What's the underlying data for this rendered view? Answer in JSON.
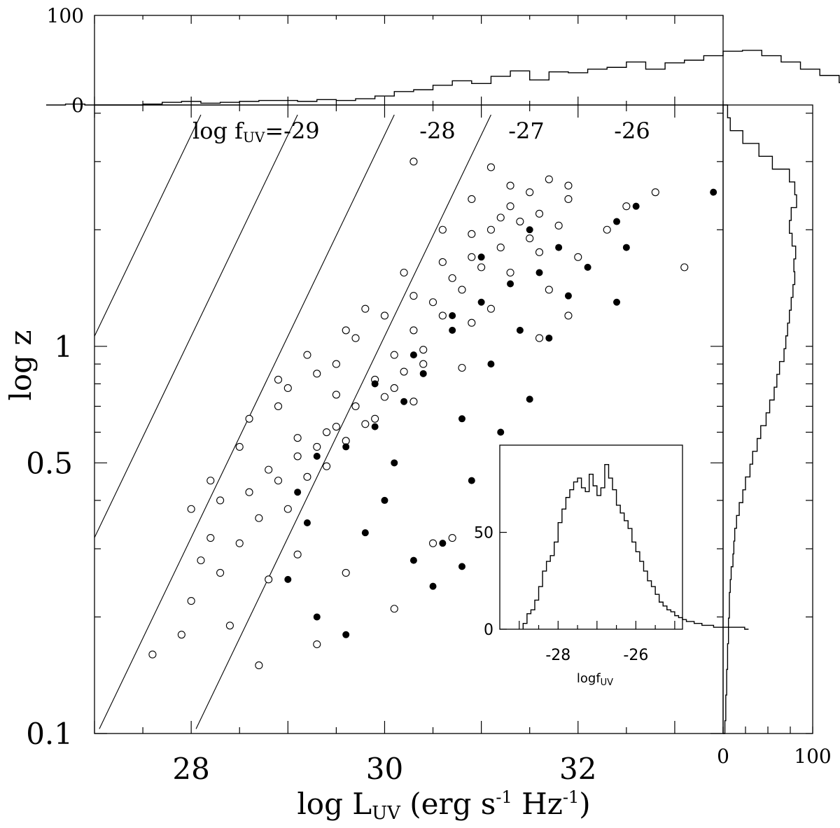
{
  "chart_data": {
    "main": {
      "type": "scatter",
      "xlabel": {
        "main": "log L",
        "sub": "UV",
        "rest": " (erg s",
        "sup1": "-1",
        "mid": " Hz",
        "sup2": "-1",
        "end": ")"
      },
      "ylabel": "log z",
      "xlim": [
        27,
        33.5
      ],
      "ylim": [
        0.1,
        4.2
      ],
      "yscale": "log",
      "x_tick_labels": [
        "28",
        "30",
        "32"
      ],
      "y_tick_labels": [
        "0.1",
        "0.5",
        "1"
      ],
      "flux_lines": {
        "label_prefix": "log f",
        "label_sub": "UV",
        "labels": [
          "=-29",
          "-28",
          "-27",
          "-26"
        ],
        "values": [
          -29,
          -28,
          -27,
          -26
        ]
      },
      "series": [
        {
          "marker": "open-circle",
          "points": [
            [
              28.7,
              0.15
            ],
            [
              27.9,
              0.18
            ],
            [
              28.0,
              0.22
            ],
            [
              28.3,
              0.26
            ],
            [
              28.5,
              0.31
            ],
            [
              28.7,
              0.36
            ],
            [
              28.9,
              0.45
            ],
            [
              29.1,
              0.52
            ],
            [
              29.3,
              0.55
            ],
            [
              29.5,
              0.62
            ],
            [
              29.7,
              0.7
            ],
            [
              29.9,
              0.82
            ],
            [
              30.1,
              0.95
            ],
            [
              30.3,
              1.1
            ],
            [
              30.5,
              1.3
            ],
            [
              30.7,
              1.5
            ],
            [
              30.9,
              1.7
            ],
            [
              31.1,
              2.0
            ],
            [
              31.3,
              2.3
            ],
            [
              31.5,
              2.5
            ],
            [
              31.7,
              2.7
            ],
            [
              31.9,
              2.4
            ],
            [
              31.1,
              2.9
            ],
            [
              30.3,
              3.0
            ],
            [
              32.3,
              2.0
            ],
            [
              32.0,
              1.7
            ],
            [
              32.5,
              2.3
            ],
            [
              32.8,
              2.5
            ],
            [
              33.1,
              1.6
            ],
            [
              28.2,
              0.32
            ],
            [
              28.6,
              0.42
            ],
            [
              29.0,
              0.38
            ],
            [
              29.2,
              0.46
            ],
            [
              29.4,
              0.49
            ],
            [
              29.6,
              0.57
            ],
            [
              29.8,
              0.63
            ],
            [
              30.0,
              0.74
            ],
            [
              30.2,
              0.86
            ],
            [
              30.4,
              0.98
            ],
            [
              30.6,
              1.2
            ],
            [
              30.8,
              1.4
            ],
            [
              31.0,
              1.6
            ],
            [
              31.2,
              1.8
            ],
            [
              31.4,
              2.1
            ],
            [
              31.6,
              2.2
            ],
            [
              28.4,
              0.19
            ],
            [
              28.8,
              0.25
            ],
            [
              29.1,
              0.29
            ],
            [
              29.3,
              0.17
            ],
            [
              29.6,
              0.26
            ],
            [
              30.1,
              0.21
            ],
            [
              30.5,
              0.31
            ],
            [
              30.7,
              0.32
            ],
            [
              27.6,
              0.16
            ],
            [
              28.1,
              0.28
            ],
            [
              28.5,
              0.55
            ],
            [
              28.9,
              0.7
            ],
            [
              29.3,
              0.85
            ],
            [
              29.5,
              0.9
            ],
            [
              29.7,
              1.05
            ],
            [
              30.0,
              1.2
            ],
            [
              30.3,
              1.35
            ],
            [
              30.6,
              1.65
            ],
            [
              30.9,
              1.95
            ],
            [
              31.2,
              2.15
            ],
            [
              31.5,
              1.9
            ],
            [
              31.7,
              1.4
            ],
            [
              31.9,
              1.2
            ],
            [
              31.6,
              1.05
            ],
            [
              30.9,
              1.15
            ],
            [
              30.4,
              0.9
            ],
            [
              30.1,
              0.78
            ],
            [
              29.9,
              0.65
            ],
            [
              29.4,
              0.6
            ],
            [
              29.1,
              0.58
            ],
            [
              28.8,
              0.48
            ],
            [
              28.6,
              0.65
            ],
            [
              29.0,
              0.78
            ],
            [
              29.5,
              0.75
            ],
            [
              30.3,
              0.72
            ],
            [
              30.8,
              0.88
            ],
            [
              31.1,
              1.25
            ],
            [
              31.3,
              1.55
            ],
            [
              31.6,
              1.75
            ],
            [
              31.8,
              2.05
            ],
            [
              31.9,
              2.6
            ],
            [
              31.3,
              2.6
            ],
            [
              30.9,
              2.4
            ],
            [
              30.6,
              2.0
            ],
            [
              30.2,
              1.55
            ],
            [
              29.8,
              1.25
            ],
            [
              29.6,
              1.1
            ],
            [
              29.2,
              0.95
            ],
            [
              28.9,
              0.82
            ],
            [
              28.3,
              0.4
            ],
            [
              28.2,
              0.45
            ],
            [
              28.0,
              0.38
            ]
          ]
        },
        {
          "marker": "filled-circle",
          "points": [
            [
              29.0,
              0.25
            ],
            [
              29.3,
              0.2
            ],
            [
              29.6,
              0.18
            ],
            [
              29.8,
              0.33
            ],
            [
              30.0,
              0.4
            ],
            [
              30.3,
              0.28
            ],
            [
              30.5,
              0.24
            ],
            [
              30.6,
              0.31
            ],
            [
              30.8,
              0.27
            ],
            [
              30.9,
              0.45
            ],
            [
              31.2,
              0.6
            ],
            [
              31.5,
              0.73
            ],
            [
              31.7,
              1.05
            ],
            [
              31.9,
              1.35
            ],
            [
              32.1,
              1.6
            ],
            [
              32.4,
              2.1
            ],
            [
              32.6,
              2.3
            ],
            [
              32.5,
              1.8
            ],
            [
              32.4,
              1.3
            ],
            [
              33.4,
              2.5
            ],
            [
              31.3,
              1.45
            ],
            [
              31.0,
              1.3
            ],
            [
              30.7,
              1.1
            ],
            [
              30.4,
              0.85
            ],
            [
              30.2,
              0.72
            ],
            [
              29.9,
              0.62
            ],
            [
              29.6,
              0.55
            ],
            [
              29.3,
              0.52
            ],
            [
              29.1,
              0.42
            ],
            [
              29.2,
              0.35
            ],
            [
              30.1,
              0.5
            ],
            [
              30.8,
              0.65
            ],
            [
              31.1,
              0.9
            ],
            [
              31.4,
              1.1
            ],
            [
              31.6,
              1.55
            ],
            [
              31.8,
              1.8
            ],
            [
              31.5,
              2.0
            ],
            [
              31.0,
              1.7
            ],
            [
              30.7,
              1.2
            ],
            [
              30.3,
              0.95
            ],
            [
              29.9,
              0.8
            ]
          ]
        }
      ]
    },
    "top_hist": {
      "type": "bar",
      "ylim": [
        0,
        100
      ],
      "y_tick_labels": [
        "0",
        "100"
      ],
      "bin_edges_start": 26.5,
      "bin_width": 0.2,
      "values": [
        0,
        1,
        0,
        0,
        0,
        1,
        3,
        4,
        2,
        3,
        4,
        5,
        5,
        4,
        6,
        5,
        7,
        10,
        15,
        17,
        22,
        27,
        24,
        32,
        38,
        28,
        37,
        36,
        40,
        42,
        48,
        40,
        47,
        50,
        55,
        60,
        61,
        55,
        48,
        40,
        33,
        25,
        20,
        15,
        11,
        8,
        6,
        4,
        2,
        2,
        1,
        1,
        1,
        1,
        0,
        1,
        1,
        0,
        0,
        0
      ]
    },
    "right_hist": {
      "type": "bar",
      "orientation": "horizontal",
      "xlim": [
        0,
        100
      ],
      "x_tick_labels": [
        "0",
        "100"
      ],
      "values": [
        2,
        3,
        3,
        4,
        4,
        5,
        5,
        6,
        6,
        7,
        7,
        8,
        9,
        11,
        12,
        13,
        15,
        18,
        22,
        25,
        30,
        33,
        38,
        42,
        48,
        52,
        57,
        60,
        63,
        68,
        70,
        72,
        74,
        76,
        78,
        80,
        79,
        81,
        77,
        74,
        76,
        82,
        80,
        74,
        55,
        40,
        22,
        8,
        5
      ]
    },
    "inset": {
      "type": "bar",
      "xlabel_prefix": "logf",
      "xlabel_sub": "UV",
      "xlim": [
        -29.5,
        -24.8
      ],
      "ylim": [
        0,
        95
      ],
      "x_tick_labels": [
        "-28",
        "-26"
      ],
      "y_tick_labels": [
        "0",
        "50"
      ],
      "bin_start": -28.9,
      "bin_width": 0.1,
      "values": [
        3,
        8,
        10,
        15,
        22,
        30,
        35,
        38,
        45,
        55,
        62,
        68,
        72,
        76,
        78,
        73,
        71,
        80,
        74,
        69,
        73,
        85,
        78,
        72,
        64,
        60,
        56,
        52,
        45,
        40,
        35,
        30,
        25,
        22,
        18,
        14,
        12,
        10,
        9,
        7,
        6,
        5,
        4,
        4,
        3,
        3,
        2,
        2,
        2,
        1,
        1,
        1,
        1,
        1,
        1,
        1,
        1,
        0
      ]
    }
  }
}
